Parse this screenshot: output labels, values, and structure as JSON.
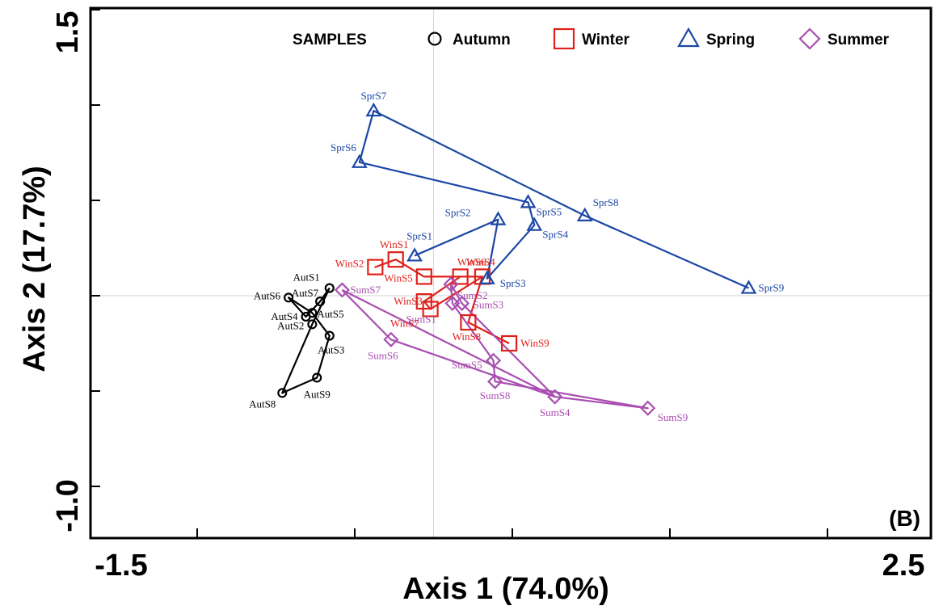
{
  "chart_data": {
    "type": "scatter",
    "panel_label": "(B)",
    "xlabel": "Axis 1 (74.0%)",
    "ylabel": "Axis 2 (17.7%)",
    "xlim": [
      -1.5,
      2.5
    ],
    "ylim": [
      -1.0,
      1.5
    ],
    "x_tick_labels": [
      "-1.5",
      "2.5"
    ],
    "y_tick_labels": [
      "-1.0",
      "1.5"
    ],
    "x_tick_values": [
      -1.5,
      -0.5,
      0.5,
      1.5,
      2.5
    ],
    "y_tick_values": [
      -1.0,
      -0.5,
      0.0,
      0.5,
      1.0,
      1.5
    ],
    "legend_title": "SAMPLES",
    "legend_position": "top-right",
    "reference_lines": {
      "x": 0.0,
      "y": 0.0
    },
    "series": [
      {
        "name": "Autumn",
        "marker": "circle",
        "color": "#000000",
        "points": [
          {
            "label": "AutS1",
            "x": -0.66,
            "y": 0.04
          },
          {
            "label": "AutS2",
            "x": -0.77,
            "y": -0.15
          },
          {
            "label": "AutS3",
            "x": -0.66,
            "y": -0.21
          },
          {
            "label": "AutS4",
            "x": -0.81,
            "y": -0.11
          },
          {
            "label": "AutS5",
            "x": -0.77,
            "y": -0.09
          },
          {
            "label": "AutS6",
            "x": -0.92,
            "y": -0.01
          },
          {
            "label": "AutS7",
            "x": -0.72,
            "y": -0.03
          },
          {
            "label": "AutS8",
            "x": -0.96,
            "y": -0.51
          },
          {
            "label": "AutS9",
            "x": -0.74,
            "y": -0.43
          }
        ]
      },
      {
        "name": "Winter",
        "marker": "square",
        "color": "#e0201b",
        "points": [
          {
            "label": "WinS1",
            "x": -0.24,
            "y": 0.19
          },
          {
            "label": "WinS2",
            "x": -0.37,
            "y": 0.15
          },
          {
            "label": "WinS3",
            "x": -0.06,
            "y": -0.03
          },
          {
            "label": "WinS4",
            "x": 0.31,
            "y": 0.1
          },
          {
            "label": "WinS5",
            "x": -0.06,
            "y": 0.1
          },
          {
            "label": "WinS6",
            "x": 0.17,
            "y": 0.1
          },
          {
            "label": "WinS7",
            "x": -0.02,
            "y": -0.07
          },
          {
            "label": "WinS8",
            "x": 0.22,
            "y": -0.14
          },
          {
            "label": "WinS9",
            "x": 0.48,
            "y": -0.25
          }
        ]
      },
      {
        "name": "Spring",
        "marker": "triangle",
        "color": "#1c47a6",
        "points": [
          {
            "label": "SprS1",
            "x": -0.12,
            "y": 0.21
          },
          {
            "label": "SprS2",
            "x": 0.41,
            "y": 0.4
          },
          {
            "label": "SprS3",
            "x": 0.34,
            "y": 0.09
          },
          {
            "label": "SprS4",
            "x": 0.64,
            "y": 0.37
          },
          {
            "label": "SprS5",
            "x": 0.6,
            "y": 0.49
          },
          {
            "label": "SprS6",
            "x": -0.47,
            "y": 0.7
          },
          {
            "label": "SprS7",
            "x": -0.38,
            "y": 0.97
          },
          {
            "label": "SprS8",
            "x": 0.96,
            "y": 0.42
          },
          {
            "label": "SprS9",
            "x": 2.0,
            "y": 0.04
          }
        ]
      },
      {
        "name": "Summer",
        "marker": "diamond",
        "color": "#a84fb0",
        "points": [
          {
            "label": "SumS1",
            "x": 0.12,
            "y": -0.04
          },
          {
            "label": "SumS2",
            "x": 0.11,
            "y": 0.06
          },
          {
            "label": "SumS3",
            "x": 0.18,
            "y": -0.04
          },
          {
            "label": "SumS4",
            "x": 0.77,
            "y": -0.53
          },
          {
            "label": "SumS5",
            "x": 0.38,
            "y": -0.34
          },
          {
            "label": "SumS6",
            "x": -0.27,
            "y": -0.23
          },
          {
            "label": "SumS7",
            "x": -0.58,
            "y": 0.03
          },
          {
            "label": "SumS8",
            "x": 0.39,
            "y": -0.45
          },
          {
            "label": "SumS9",
            "x": 1.36,
            "y": -0.59
          }
        ]
      }
    ]
  }
}
